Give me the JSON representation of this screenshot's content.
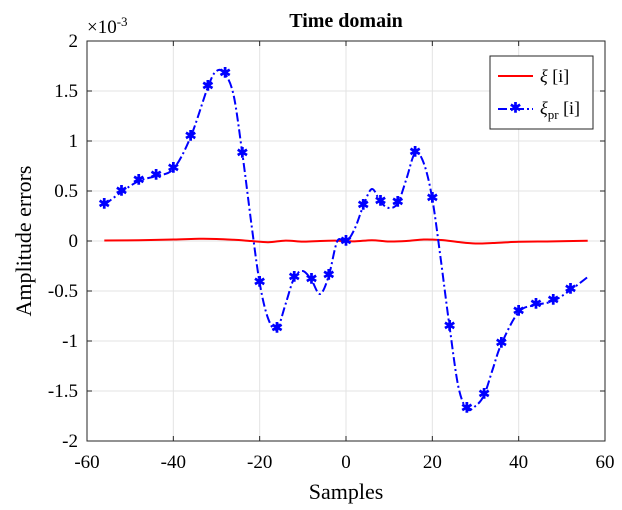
{
  "chart_data": {
    "type": "line",
    "title": "Time domain",
    "xlabel": "Samples",
    "ylabel": "Amplitude errors",
    "exponent_label": "×10",
    "exponent_power": "-3",
    "xlim": [
      -60,
      60
    ],
    "ylim": [
      -2,
      2
    ],
    "xticks": [
      "-60",
      "-40",
      "-20",
      "0",
      "20",
      "40",
      "60"
    ],
    "yticks": [
      "2",
      "1.5",
      "1",
      "0.5",
      "0",
      "-0.5",
      "-1",
      "-1.5",
      "-2"
    ],
    "xtick_values": [
      -60,
      -40,
      -20,
      0,
      20,
      40,
      60
    ],
    "ytick_values": [
      2,
      1.5,
      1,
      0.5,
      0,
      -0.5,
      -1,
      -1.5,
      -2
    ],
    "grid": true,
    "legend_position": "top-right",
    "series": [
      {
        "name": "ξ [i]",
        "legend_symbol": "ξ",
        "legend_subscript": "",
        "legend_suffix": " [i]",
        "color": "#ff0000",
        "style": "solid",
        "marker": "none",
        "x": [
          -56,
          -48,
          -40,
          -34,
          -30,
          -26,
          -22,
          -18,
          -14,
          -10,
          -6,
          -2,
          2,
          6,
          10,
          14,
          18,
          22,
          26,
          30,
          34,
          40,
          48,
          56
        ],
        "y": [
          0.005,
          0.008,
          0.015,
          0.022,
          0.02,
          0.012,
          0.0,
          -0.012,
          0.004,
          -0.006,
          0.0,
          0.003,
          -0.004,
          0.008,
          -0.005,
          0.0,
          0.015,
          0.01,
          -0.01,
          -0.025,
          -0.02,
          -0.008,
          -0.004,
          0.003
        ]
      },
      {
        "name": "ξpr [i]",
        "legend_symbol": "ξ",
        "legend_subscript": "pr",
        "legend_suffix": " [i]",
        "color": "#0000ff",
        "style": "dashdot",
        "marker": "asterisk",
        "x": [
          -56,
          -52,
          -48,
          -44,
          -40,
          -36,
          -32,
          -30,
          -28,
          -26,
          -24,
          -22,
          -20,
          -18,
          -16,
          -14,
          -12,
          -10,
          -8,
          -6,
          -4,
          -2,
          0,
          2,
          4,
          6,
          8,
          10,
          12,
          14,
          16,
          18,
          20,
          22,
          24,
          26,
          28,
          30,
          32,
          34,
          36,
          40,
          44,
          48,
          52,
          56
        ],
        "y": [
          0.36,
          0.49,
          0.6,
          0.65,
          0.72,
          1.04,
          1.54,
          1.7,
          1.67,
          1.45,
          0.87,
          0.2,
          -0.42,
          -0.78,
          -0.88,
          -0.63,
          -0.37,
          -0.3,
          -0.39,
          -0.53,
          -0.35,
          0.0,
          -0.01,
          0.12,
          0.35,
          0.52,
          0.39,
          0.33,
          0.38,
          0.62,
          0.88,
          0.78,
          0.42,
          -0.2,
          -0.86,
          -1.45,
          -1.68,
          -1.65,
          -1.54,
          -1.28,
          -1.03,
          -0.71,
          -0.64,
          -0.6,
          -0.49,
          -0.36
        ],
        "marker_x": [
          -56,
          -52,
          -48,
          -44,
          -40,
          -36,
          -32,
          -28,
          -24,
          -20,
          -16,
          -12,
          -8,
          -4,
          0,
          4,
          8,
          12,
          16,
          20,
          24,
          28,
          32,
          36,
          40,
          44,
          48,
          52
        ],
        "marker_y": [
          0.36,
          0.49,
          0.6,
          0.65,
          0.72,
          1.04,
          1.54,
          1.67,
          0.87,
          -0.42,
          -0.88,
          -0.37,
          -0.39,
          -0.35,
          -0.01,
          0.35,
          0.39,
          0.38,
          0.88,
          0.42,
          -0.86,
          -1.68,
          -1.54,
          -1.03,
          -0.71,
          -0.64,
          -0.6,
          -0.49
        ]
      }
    ]
  }
}
